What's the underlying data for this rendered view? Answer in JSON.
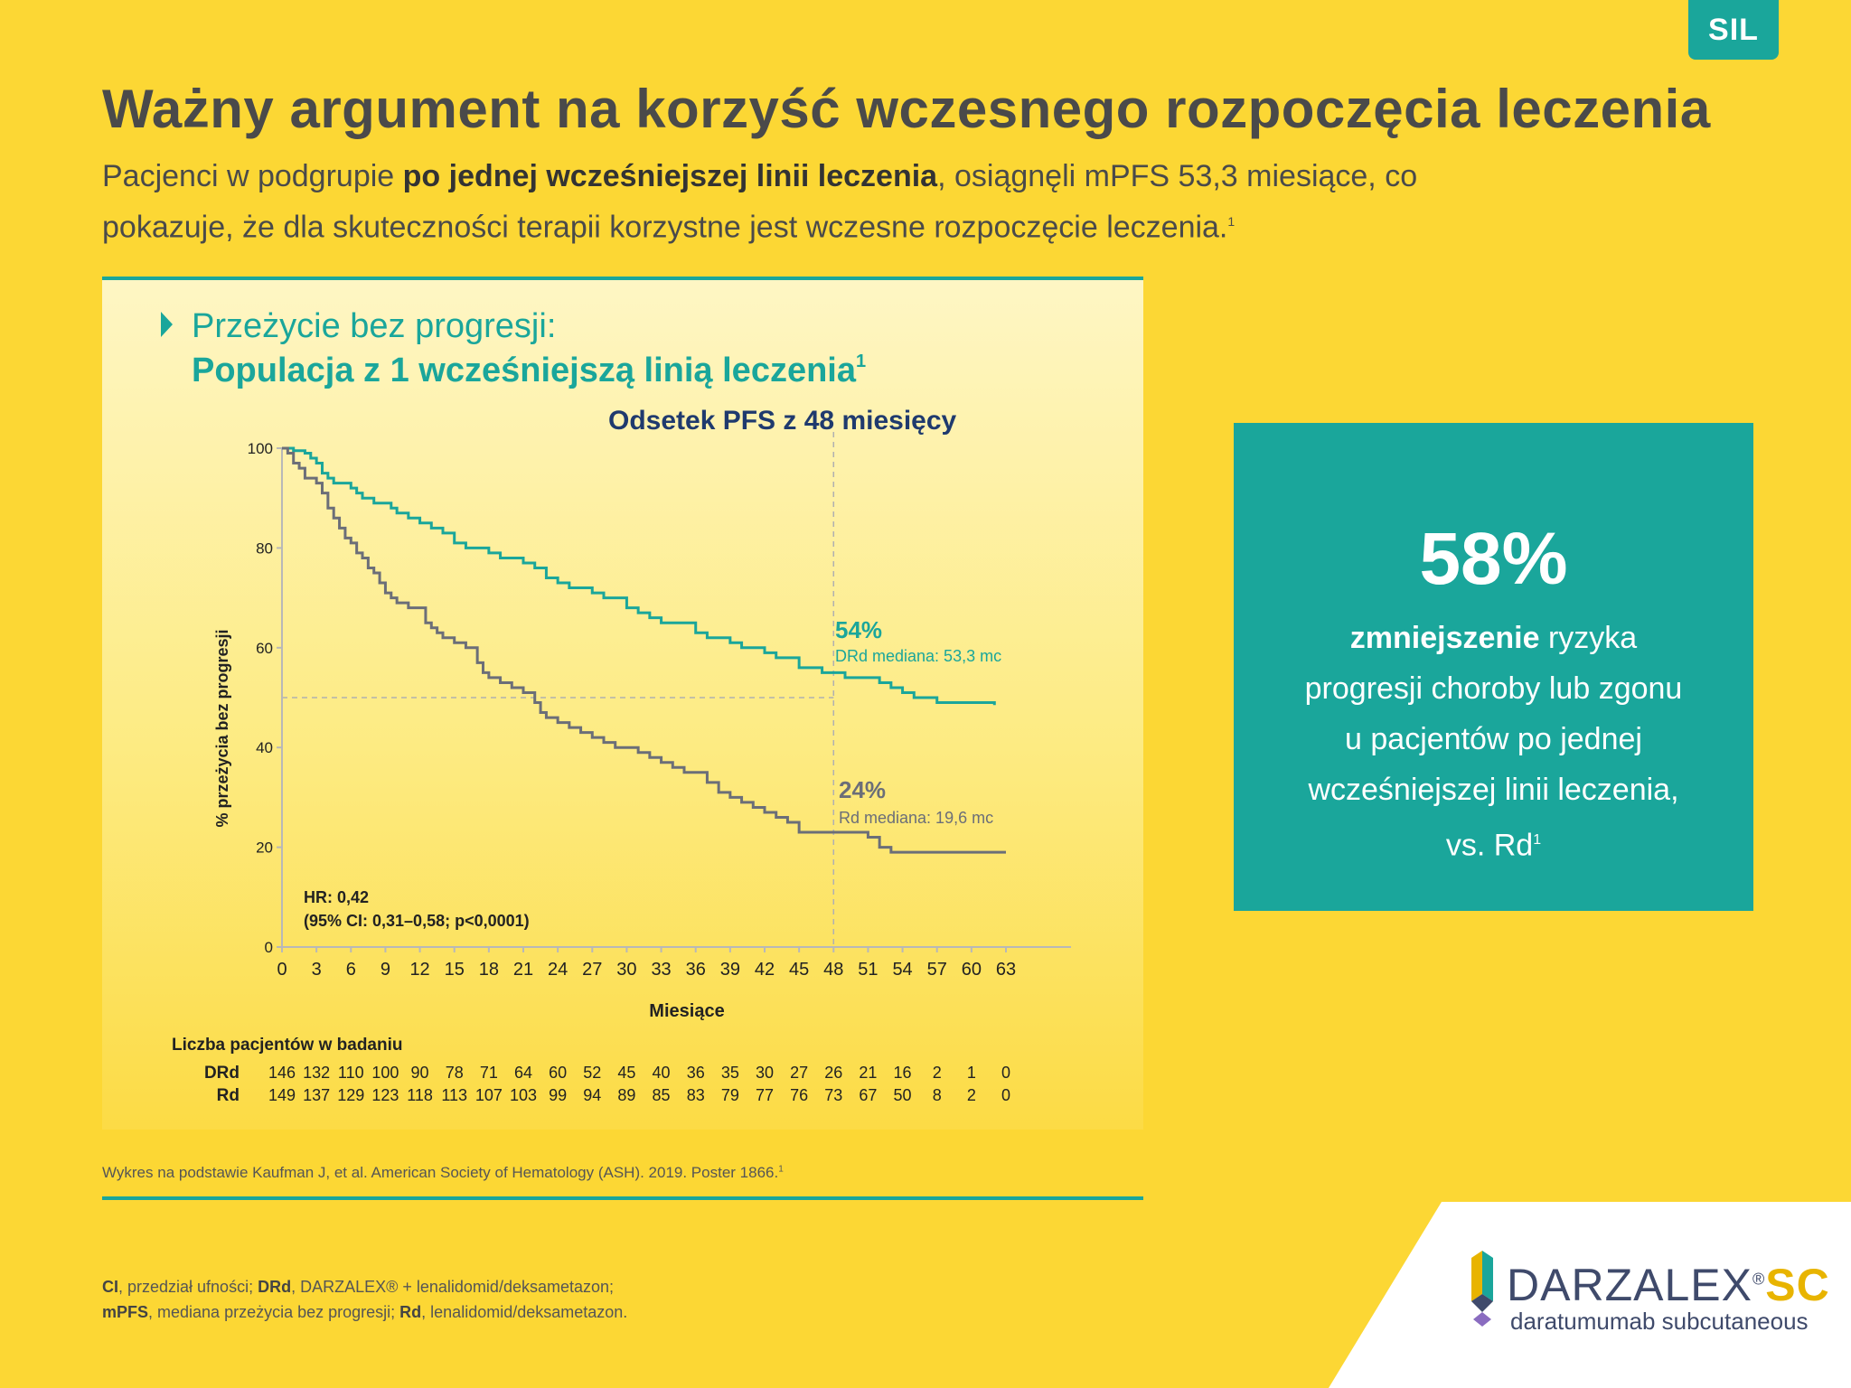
{
  "badge": "SIL",
  "title": "Ważny argument na korzyść wczesnego rozpoczęcia leczenia",
  "subtitle": {
    "part1": "Pacjenci w podgrupie ",
    "bold": "po jednej wcześniejszej linii leczenia",
    "part2": ", osiągnęli mPFS 53,3 miesiące, co pokazuje, że dla skuteczności terapii korzystne jest wczesne rozpoczęcie leczenia.",
    "ref": "1"
  },
  "chart_heading": {
    "line1": "Przeżycie bez progresji:",
    "line2": "Populacja z 1 wcześniejszą linią leczenia",
    "ref": "1",
    "annotation": "Odsetek PFS z 48 miesięcy"
  },
  "chart_data": {
    "type": "line",
    "xlabel": "Miesiące",
    "ylabel": "% przeżycia bez progresji",
    "xlim": [
      0,
      63
    ],
    "ylim": [
      0,
      100
    ],
    "xticks": [
      0,
      3,
      6,
      9,
      12,
      15,
      18,
      21,
      24,
      27,
      30,
      33,
      36,
      39,
      42,
      45,
      48,
      51,
      54,
      57,
      60,
      63
    ],
    "yticks": [
      0,
      20,
      40,
      60,
      80,
      100
    ],
    "reference_lines": {
      "x": 48,
      "y": 50
    },
    "series": [
      {
        "name": "DRd",
        "color": "#1aa69b",
        "points": [
          [
            0,
            100
          ],
          [
            1,
            99.5
          ],
          [
            2,
            99
          ],
          [
            2.5,
            98
          ],
          [
            3,
            97
          ],
          [
            3.5,
            95
          ],
          [
            4,
            94
          ],
          [
            4.5,
            93
          ],
          [
            5,
            93
          ],
          [
            6,
            92
          ],
          [
            6.5,
            91
          ],
          [
            7,
            90
          ],
          [
            8,
            89
          ],
          [
            9,
            89
          ],
          [
            9.5,
            88
          ],
          [
            10,
            87
          ],
          [
            11,
            86
          ],
          [
            12,
            85
          ],
          [
            13,
            84
          ],
          [
            14,
            83
          ],
          [
            15,
            81
          ],
          [
            16,
            80
          ],
          [
            17,
            80
          ],
          [
            18,
            79
          ],
          [
            19,
            78
          ],
          [
            20,
            78
          ],
          [
            21,
            77
          ],
          [
            22,
            76
          ],
          [
            23,
            74
          ],
          [
            24,
            73
          ],
          [
            25,
            72
          ],
          [
            26,
            72
          ],
          [
            27,
            71
          ],
          [
            28,
            70
          ],
          [
            29,
            70
          ],
          [
            30,
            68
          ],
          [
            31,
            67
          ],
          [
            32,
            66
          ],
          [
            33,
            65
          ],
          [
            35,
            65
          ],
          [
            36,
            63
          ],
          [
            37,
            62
          ],
          [
            38,
            62
          ],
          [
            39,
            61
          ],
          [
            40,
            60
          ],
          [
            41,
            60
          ],
          [
            42,
            59
          ],
          [
            43,
            58
          ],
          [
            44,
            58
          ],
          [
            45,
            56
          ],
          [
            46,
            56
          ],
          [
            47,
            55
          ],
          [
            48,
            55
          ],
          [
            49,
            54
          ],
          [
            51,
            54
          ],
          [
            52,
            53
          ],
          [
            53,
            52
          ],
          [
            54,
            51
          ],
          [
            55,
            50
          ],
          [
            56,
            50
          ],
          [
            57,
            49
          ],
          [
            60,
            49
          ],
          [
            62,
            48.5
          ]
        ]
      },
      {
        "name": "Rd",
        "color": "#6b6e78",
        "points": [
          [
            0,
            100
          ],
          [
            0.5,
            99
          ],
          [
            1,
            97
          ],
          [
            1.5,
            96
          ],
          [
            2,
            94
          ],
          [
            3,
            93
          ],
          [
            3.5,
            91
          ],
          [
            4,
            88
          ],
          [
            4.5,
            86
          ],
          [
            5,
            84
          ],
          [
            5.5,
            82
          ],
          [
            6,
            81
          ],
          [
            6.5,
            79
          ],
          [
            7,
            78
          ],
          [
            7.5,
            76
          ],
          [
            8,
            75
          ],
          [
            8.5,
            73
          ],
          [
            9,
            71
          ],
          [
            9.5,
            70
          ],
          [
            10,
            69
          ],
          [
            11,
            68
          ],
          [
            12,
            68
          ],
          [
            12.5,
            65
          ],
          [
            13,
            64
          ],
          [
            13.5,
            63
          ],
          [
            14,
            62
          ],
          [
            15,
            61
          ],
          [
            16,
            60
          ],
          [
            17,
            57
          ],
          [
            17.5,
            55
          ],
          [
            18,
            54
          ],
          [
            19,
            53
          ],
          [
            20,
            52
          ],
          [
            21,
            51
          ],
          [
            22,
            49
          ],
          [
            22.5,
            47
          ],
          [
            23,
            46
          ],
          [
            24,
            45
          ],
          [
            25,
            44
          ],
          [
            26,
            43
          ],
          [
            27,
            42
          ],
          [
            28,
            41
          ],
          [
            29,
            40
          ],
          [
            30,
            40
          ],
          [
            31,
            39
          ],
          [
            32,
            38
          ],
          [
            33,
            37
          ],
          [
            34,
            36
          ],
          [
            35,
            35
          ],
          [
            36,
            35
          ],
          [
            37,
            33
          ],
          [
            38,
            31
          ],
          [
            39,
            30
          ],
          [
            40,
            29
          ],
          [
            41,
            28
          ],
          [
            42,
            27
          ],
          [
            43,
            26
          ],
          [
            44,
            25
          ],
          [
            45,
            23
          ],
          [
            46,
            23
          ],
          [
            47,
            23
          ],
          [
            48,
            23
          ],
          [
            49,
            23
          ],
          [
            51,
            22
          ],
          [
            52,
            20
          ],
          [
            53,
            19
          ],
          [
            54,
            19
          ],
          [
            57,
            19
          ],
          [
            60,
            19
          ],
          [
            63,
            19
          ]
        ]
      }
    ],
    "labels": {
      "drd_pct": "54%",
      "drd_median": "DRd mediana: 53,3 mc",
      "rd_pct": "24%",
      "rd_median": "Rd mediana: 19,6 mc",
      "hr": "HR: 0,42",
      "ci": "(95% CI: 0,31–0,58; p<0,0001)"
    },
    "at_risk": {
      "title": "Liczba pacjentów w badaniu",
      "rows": [
        {
          "name": "DRd",
          "values": [
            "146",
            "132",
            "110",
            "100",
            "90",
            "78",
            "71",
            "64",
            "60",
            "52",
            "45",
            "40",
            "36",
            "35",
            "30",
            "27",
            "26",
            "21",
            "16",
            "2",
            "1",
            "0"
          ]
        },
        {
          "name": "Rd",
          "values": [
            "149",
            "137",
            "129",
            "123",
            "118",
            "113",
            "107",
            "103",
            "99",
            "94",
            "89",
            "85",
            "83",
            "79",
            "77",
            "76",
            "73",
            "67",
            "50",
            "8",
            "2",
            "0"
          ]
        }
      ]
    }
  },
  "source": "Wykres na podstawie Kaufman J, et al. American Society of Hematology (ASH). 2019. Poster 1866.",
  "source_ref": "1",
  "stat": {
    "value": "58%",
    "bold": "zmniejszenie",
    "line1": " ryzyka",
    "line2": "progresji choroby lub zgonu",
    "line3": "u pacjentów po jednej",
    "line4": "wcześniejszej linii leczenia,",
    "line5": "vs. Rd",
    "ref": "1"
  },
  "footnote": {
    "ci_abbr": "CI",
    "ci_text": ", przedział ufności; ",
    "drd_abbr": "DRd",
    "drd_text": ", DARZALEX® + lenalidomid/deksametazon;",
    "mpfs_abbr": "mPFS",
    "mpfs_text": ", mediana przeżycia bez progresji; ",
    "rd_abbr": "Rd",
    "rd_text": ", lenalidomid/deksametazon."
  },
  "logo": {
    "name": "DARZALEX",
    "reg": "®",
    "sc": "SC",
    "sub": "daratumumab subcutaneous"
  },
  "colors": {
    "background": "#fcd734",
    "teal": "#1aa69b",
    "grey": "#6b6e78",
    "navy": "#1f3a6e"
  }
}
